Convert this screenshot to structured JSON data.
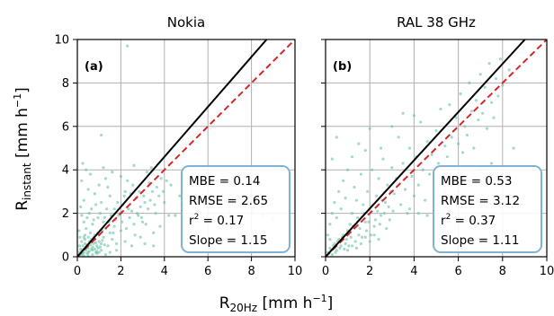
{
  "figure": {
    "ylabel_main": "R",
    "ylabel_sub": "instant",
    "ylabel_unit": " [mm h",
    "ylabel_exp": "−1",
    "ylabel_close": "]",
    "xlabel_main": "R",
    "xlabel_sub": "20Hz",
    "xlabel_unit": " [mm h",
    "xlabel_exp": "−1",
    "xlabel_close": "]"
  },
  "chart_data": [
    {
      "type": "scatter",
      "title": "Nokia",
      "panel_label": "(a)",
      "xlim": [
        0,
        10
      ],
      "ylim": [
        0,
        10
      ],
      "xticks": [
        0,
        2,
        4,
        6,
        8,
        10
      ],
      "yticks": [
        0,
        2,
        4,
        6,
        8,
        10
      ],
      "grid": true,
      "slope": 1.15,
      "point_color": "#66c2a5",
      "fit_color": "#000000",
      "oneone_color": "#d62728",
      "box_color": "#7fb3d5",
      "stats": [
        {
          "label": "MBE",
          "value": "0.14"
        },
        {
          "label": "RMSE",
          "value": "2.65"
        },
        {
          "label": "r",
          "exp": "2",
          "value": "0.17"
        },
        {
          "label": "Slope",
          "value": "1.15"
        }
      ],
      "points": [
        [
          0.1,
          0.2
        ],
        [
          0.2,
          0.1
        ],
        [
          0.15,
          0.35
        ],
        [
          0.3,
          0.2
        ],
        [
          0.25,
          0.5
        ],
        [
          0.4,
          0.3
        ],
        [
          0.35,
          0.6
        ],
        [
          0.5,
          0.4
        ],
        [
          0.45,
          0.15
        ],
        [
          0.6,
          0.55
        ],
        [
          0.55,
          0.25
        ],
        [
          0.7,
          0.45
        ],
        [
          0.65,
          0.8
        ],
        [
          0.8,
          0.35
        ],
        [
          0.75,
          0.6
        ],
        [
          0.9,
          0.5
        ],
        [
          0.85,
          0.2
        ],
        [
          1.0,
          0.7
        ],
        [
          0.95,
          0.4
        ],
        [
          1.1,
          0.6
        ],
        [
          0.2,
          0.7
        ],
        [
          0.3,
          0.9
        ],
        [
          0.1,
          0.5
        ],
        [
          0.5,
          0.9
        ],
        [
          0.6,
          1.1
        ],
        [
          0.4,
          1.3
        ],
        [
          0.3,
          1.6
        ],
        [
          0.2,
          1.9
        ],
        [
          0.7,
          1.5
        ],
        [
          0.8,
          1.0
        ],
        [
          1.2,
          0.9
        ],
        [
          1.3,
          1.3
        ],
        [
          1.4,
          0.5
        ],
        [
          1.5,
          1.1
        ],
        [
          1.2,
          1.6
        ],
        [
          1.6,
          0.8
        ],
        [
          1.7,
          1.4
        ],
        [
          1.8,
          0.6
        ],
        [
          1.9,
          1.9
        ],
        [
          2.0,
          1.2
        ],
        [
          0.15,
          2.3
        ],
        [
          0.3,
          2.6
        ],
        [
          0.5,
          3.1
        ],
        [
          0.2,
          3.5
        ],
        [
          0.4,
          4.0
        ],
        [
          0.6,
          3.8
        ],
        [
          0.25,
          4.3
        ],
        [
          0.8,
          2.9
        ],
        [
          1.0,
          3.3
        ],
        [
          1.1,
          2.5
        ],
        [
          1.3,
          3.6
        ],
        [
          1.4,
          3.2
        ],
        [
          1.2,
          4.1
        ],
        [
          1.6,
          3.9
        ],
        [
          1.5,
          2.8
        ],
        [
          1.1,
          5.6
        ],
        [
          2.3,
          9.7
        ],
        [
          1.7,
          2.2
        ],
        [
          2.1,
          2.4
        ],
        [
          2.2,
          3.0
        ],
        [
          2.4,
          1.8
        ],
        [
          2.5,
          2.1
        ],
        [
          2.6,
          1.5
        ],
        [
          2.7,
          2.7
        ],
        [
          2.8,
          1.9
        ],
        [
          2.9,
          2.3
        ],
        [
          3.0,
          1.6
        ],
        [
          3.1,
          2.5
        ],
        [
          3.2,
          3.9
        ],
        [
          3.3,
          3.4
        ],
        [
          2.0,
          3.7
        ],
        [
          2.3,
          3.5
        ],
        [
          2.6,
          4.2
        ],
        [
          3.4,
          4.1
        ],
        [
          3.6,
          2.0
        ],
        [
          3.8,
          1.4
        ],
        [
          4.0,
          2.5
        ],
        [
          4.2,
          1.9
        ],
        [
          3.5,
          1.1
        ],
        [
          2.9,
          0.9
        ],
        [
          2.2,
          0.7
        ],
        [
          1.8,
          0.3
        ],
        [
          1.5,
          0.2
        ],
        [
          1.3,
          0.1
        ],
        [
          2.5,
          0.5
        ],
        [
          3.1,
          0.6
        ],
        [
          3.5,
          0.5
        ],
        [
          0.05,
          0.05
        ],
        [
          0.1,
          0.1
        ],
        [
          0.3,
          0.05
        ],
        [
          0.5,
          0.05
        ],
        [
          0.7,
          0.1
        ],
        [
          0.9,
          0.15
        ],
        [
          1.0,
          0.2
        ],
        [
          1.1,
          0.3
        ],
        [
          0.12,
          0.9
        ],
        [
          0.08,
          1.2
        ],
        [
          0.35,
          1.0
        ],
        [
          0.45,
          1.8
        ],
        [
          0.55,
          2.0
        ],
        [
          0.65,
          2.2
        ],
        [
          0.75,
          1.7
        ],
        [
          0.85,
          2.4
        ],
        [
          0.95,
          1.8
        ],
        [
          1.05,
          2.0
        ],
        [
          1.15,
          1.2
        ],
        [
          1.25,
          1.8
        ],
        [
          1.35,
          2.2
        ],
        [
          1.45,
          1.6
        ],
        [
          1.55,
          1.9
        ],
        [
          1.65,
          1.1
        ],
        [
          1.75,
          1.7
        ],
        [
          1.85,
          2.5
        ],
        [
          1.95,
          2.0
        ],
        [
          2.05,
          1.6
        ],
        [
          2.15,
          2.8
        ],
        [
          2.25,
          1.3
        ],
        [
          2.35,
          2.2
        ],
        [
          2.45,
          2.9
        ],
        [
          2.55,
          3.3
        ],
        [
          2.65,
          1.0
        ],
        [
          2.75,
          2.0
        ],
        [
          2.85,
          3.0
        ],
        [
          2.95,
          1.8
        ],
        [
          3.05,
          2.8
        ],
        [
          3.15,
          1.5
        ],
        [
          3.25,
          2.2
        ],
        [
          3.35,
          2.6
        ],
        [
          3.45,
          3.0
        ],
        [
          3.55,
          2.4
        ],
        [
          3.65,
          3.2
        ],
        [
          3.75,
          2.8
        ],
        [
          3.85,
          3.6
        ],
        [
          3.95,
          3.0
        ],
        [
          4.1,
          3.5
        ],
        [
          4.3,
          3.3
        ],
        [
          4.5,
          1.9
        ],
        [
          4.7,
          2.8
        ],
        [
          4.9,
          2.4
        ],
        [
          5.1,
          3.3
        ],
        [
          5.3,
          1.9
        ],
        [
          5.5,
          2.5
        ],
        [
          5.8,
          1.7
        ],
        [
          6.2,
          2.3
        ],
        [
          6.6,
          1.8
        ],
        [
          7.0,
          2.1
        ],
        [
          7.5,
          1.6
        ],
        [
          8.0,
          2.0
        ],
        [
          8.5,
          1.9
        ],
        [
          9.0,
          1.7
        ],
        [
          0.2,
          0.3
        ],
        [
          0.4,
          0.45
        ],
        [
          0.6,
          0.65
        ],
        [
          0.8,
          0.8
        ],
        [
          1.0,
          1.0
        ],
        [
          0.35,
          0.8
        ],
        [
          0.55,
          0.7
        ],
        [
          0.75,
          0.9
        ],
        [
          0.95,
          1.1
        ],
        [
          1.15,
          0.75
        ],
        [
          0.3,
          0.35
        ],
        [
          0.5,
          0.2
        ],
        [
          0.7,
          0.3
        ],
        [
          0.9,
          0.25
        ],
        [
          0.25,
          0.15
        ],
        [
          0.45,
          0.55
        ],
        [
          0.65,
          0.35
        ],
        [
          0.85,
          0.65
        ],
        [
          1.05,
          0.45
        ],
        [
          1.25,
          0.55
        ]
      ]
    },
    {
      "type": "scatter",
      "title": "RAL 38 GHz",
      "panel_label": "(b)",
      "xlim": [
        0,
        10
      ],
      "ylim": [
        0,
        10
      ],
      "xticks": [
        0,
        2,
        4,
        6,
        8,
        10
      ],
      "yticks": [
        0,
        2,
        4,
        6,
        8,
        10
      ],
      "grid": true,
      "slope": 1.11,
      "point_color": "#66c2a5",
      "fit_color": "#000000",
      "oneone_color": "#d62728",
      "box_color": "#7fb3d5",
      "stats": [
        {
          "label": "MBE",
          "value": "0.53"
        },
        {
          "label": "RMSE",
          "value": "3.12"
        },
        {
          "label": "r",
          "exp": "2",
          "value": "0.37"
        },
        {
          "label": "Slope",
          "value": "1.11"
        }
      ],
      "points": [
        [
          0.1,
          0.2
        ],
        [
          0.2,
          0.4
        ],
        [
          0.3,
          0.1
        ],
        [
          0.4,
          0.6
        ],
        [
          0.5,
          0.3
        ],
        [
          0.6,
          0.8
        ],
        [
          0.7,
          0.5
        ],
        [
          0.8,
          1.0
        ],
        [
          0.9,
          0.6
        ],
        [
          1.0,
          1.2
        ],
        [
          0.2,
          1.5
        ],
        [
          0.3,
          2.0
        ],
        [
          0.4,
          2.5
        ],
        [
          0.5,
          1.8
        ],
        [
          0.6,
          3.0
        ],
        [
          0.7,
          2.2
        ],
        [
          0.8,
          3.5
        ],
        [
          0.9,
          2.7
        ],
        [
          1.0,
          4.0
        ],
        [
          1.1,
          1.5
        ],
        [
          1.2,
          2.0
        ],
        [
          1.3,
          3.2
        ],
        [
          1.4,
          2.6
        ],
        [
          1.5,
          1.0
        ],
        [
          1.6,
          3.8
        ],
        [
          1.7,
          2.4
        ],
        [
          1.8,
          1.6
        ],
        [
          1.9,
          3.0
        ],
        [
          2.0,
          2.2
        ],
        [
          2.1,
          4.0
        ],
        [
          2.2,
          1.4
        ],
        [
          2.3,
          2.8
        ],
        [
          2.4,
          3.6
        ],
        [
          2.5,
          1.9
        ],
        [
          2.6,
          4.5
        ],
        [
          2.7,
          2.5
        ],
        [
          2.8,
          3.3
        ],
        [
          2.9,
          1.7
        ],
        [
          3.0,
          4.1
        ],
        [
          3.1,
          2.9
        ],
        [
          3.2,
          3.6
        ],
        [
          3.3,
          5.5
        ],
        [
          3.4,
          2.4
        ],
        [
          3.5,
          4.3
        ],
        [
          3.6,
          3.1
        ],
        [
          3.7,
          2.0
        ],
        [
          3.8,
          5.0
        ],
        [
          3.9,
          3.7
        ],
        [
          4.0,
          2.8
        ],
        [
          4.1,
          4.6
        ],
        [
          4.2,
          3.3
        ],
        [
          4.3,
          6.2
        ],
        [
          4.4,
          4.0
        ],
        [
          4.5,
          2.6
        ],
        [
          4.6,
          5.3
        ],
        [
          4.7,
          3.8
        ],
        [
          4.8,
          4.7
        ],
        [
          4.9,
          3.0
        ],
        [
          5.0,
          5.8
        ],
        [
          5.1,
          4.3
        ],
        [
          5.2,
          6.8
        ],
        [
          5.3,
          3.6
        ],
        [
          5.4,
          5.1
        ],
        [
          5.5,
          4.6
        ],
        [
          5.6,
          7.0
        ],
        [
          5.7,
          5.5
        ],
        [
          5.8,
          4.1
        ],
        [
          5.9,
          6.4
        ],
        [
          6.0,
          5.2
        ],
        [
          6.1,
          7.5
        ],
        [
          6.2,
          4.8
        ],
        [
          6.3,
          6.0
        ],
        [
          6.4,
          5.6
        ],
        [
          6.5,
          8.0
        ],
        [
          6.6,
          6.7
        ],
        [
          6.7,
          5.0
        ],
        [
          6.8,
          7.2
        ],
        [
          6.9,
          6.3
        ],
        [
          7.0,
          8.4
        ],
        [
          7.1,
          6.6
        ],
        [
          7.2,
          7.8
        ],
        [
          7.3,
          5.9
        ],
        [
          7.4,
          8.9
        ],
        [
          7.5,
          7.1
        ],
        [
          7.6,
          6.4
        ],
        [
          7.7,
          8.2
        ],
        [
          7.8,
          7.4
        ],
        [
          7.9,
          9.1
        ],
        [
          8.0,
          7.9
        ],
        [
          8.3,
          8.6
        ],
        [
          2.0,
          5.9
        ],
        [
          3.0,
          6.0
        ],
        [
          3.5,
          6.6
        ],
        [
          4.0,
          6.5
        ],
        [
          2.5,
          5.0
        ],
        [
          1.5,
          5.2
        ],
        [
          0.5,
          5.5
        ],
        [
          0.3,
          4.5
        ],
        [
          1.2,
          4.6
        ],
        [
          1.8,
          4.9
        ],
        [
          3.8,
          2.2
        ],
        [
          4.2,
          2.0
        ],
        [
          4.6,
          1.9
        ],
        [
          5.0,
          2.4
        ],
        [
          5.4,
          2.9
        ],
        [
          6.0,
          3.0
        ],
        [
          6.5,
          3.5
        ],
        [
          7.0,
          4.0
        ],
        [
          7.5,
          4.3
        ],
        [
          8.5,
          5.0
        ],
        [
          0.15,
          0.15
        ],
        [
          0.25,
          0.3
        ],
        [
          0.35,
          0.5
        ],
        [
          0.45,
          0.2
        ],
        [
          0.55,
          0.7
        ],
        [
          0.65,
          0.4
        ],
        [
          0.75,
          0.9
        ],
        [
          0.85,
          0.35
        ],
        [
          0.95,
          0.8
        ],
        [
          1.05,
          0.5
        ],
        [
          1.15,
          0.9
        ],
        [
          1.25,
          1.4
        ],
        [
          1.35,
          0.7
        ],
        [
          1.45,
          1.8
        ],
        [
          1.55,
          1.3
        ],
        [
          1.65,
          0.9
        ],
        [
          1.75,
          2.0
        ],
        [
          1.85,
          1.2
        ],
        [
          1.95,
          1.6
        ],
        [
          2.05,
          1.0
        ],
        [
          2.15,
          2.4
        ],
        [
          2.25,
          1.7
        ],
        [
          2.35,
          2.1
        ],
        [
          2.45,
          1.5
        ],
        [
          2.55,
          2.6
        ],
        [
          2.65,
          2.0
        ],
        [
          2.75,
          1.3
        ],
        [
          2.85,
          2.3
        ],
        [
          2.95,
          3.0
        ],
        [
          3.05,
          2.1
        ],
        [
          1.0,
          0.3
        ],
        [
          1.2,
          0.5
        ],
        [
          1.4,
          0.4
        ],
        [
          1.6,
          0.6
        ],
        [
          1.8,
          0.9
        ],
        [
          2.0,
          0.7
        ],
        [
          2.2,
          1.0
        ],
        [
          2.4,
          0.8
        ],
        [
          0.2,
          0.8
        ],
        [
          0.1,
          1.0
        ]
      ]
    }
  ]
}
